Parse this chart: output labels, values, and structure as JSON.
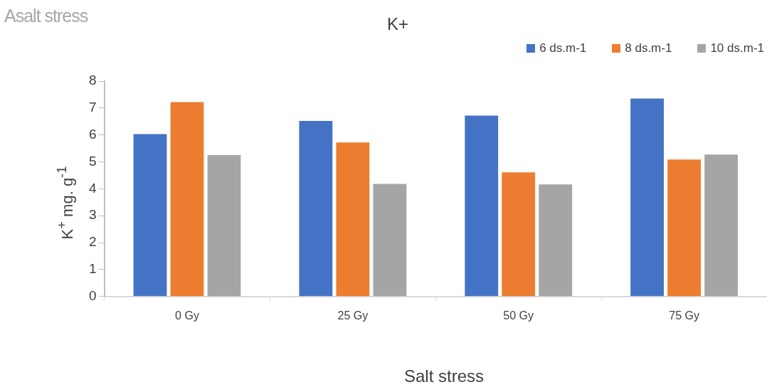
{
  "chart_data": {
    "type": "bar",
    "title": "K+",
    "xlabel": "Salt stress",
    "ylabel": "K$^{+}$  mg. g$^{-1}$",
    "annotations": [
      "Asalt stress"
    ],
    "categories": [
      "0 Gy",
      "25 Gy",
      "50 Gy",
      "75 Gy"
    ],
    "series": [
      {
        "name": "6  ds.m-1",
        "color": "#4472c4",
        "values": [
          6.03,
          6.52,
          6.72,
          7.35
        ]
      },
      {
        "name": "8  ds.m-1",
        "color": "#ed7d31",
        "values": [
          7.22,
          5.72,
          4.61,
          5.09
        ]
      },
      {
        "name": "10  ds.m-1",
        "color": "#a5a5a5",
        "values": [
          5.25,
          4.18,
          4.16,
          5.27
        ]
      }
    ],
    "ylim": [
      0,
      8
    ],
    "yticks": [
      0,
      1,
      2,
      3,
      4,
      5,
      6,
      7,
      8
    ],
    "grid": false,
    "legend": "top right"
  }
}
